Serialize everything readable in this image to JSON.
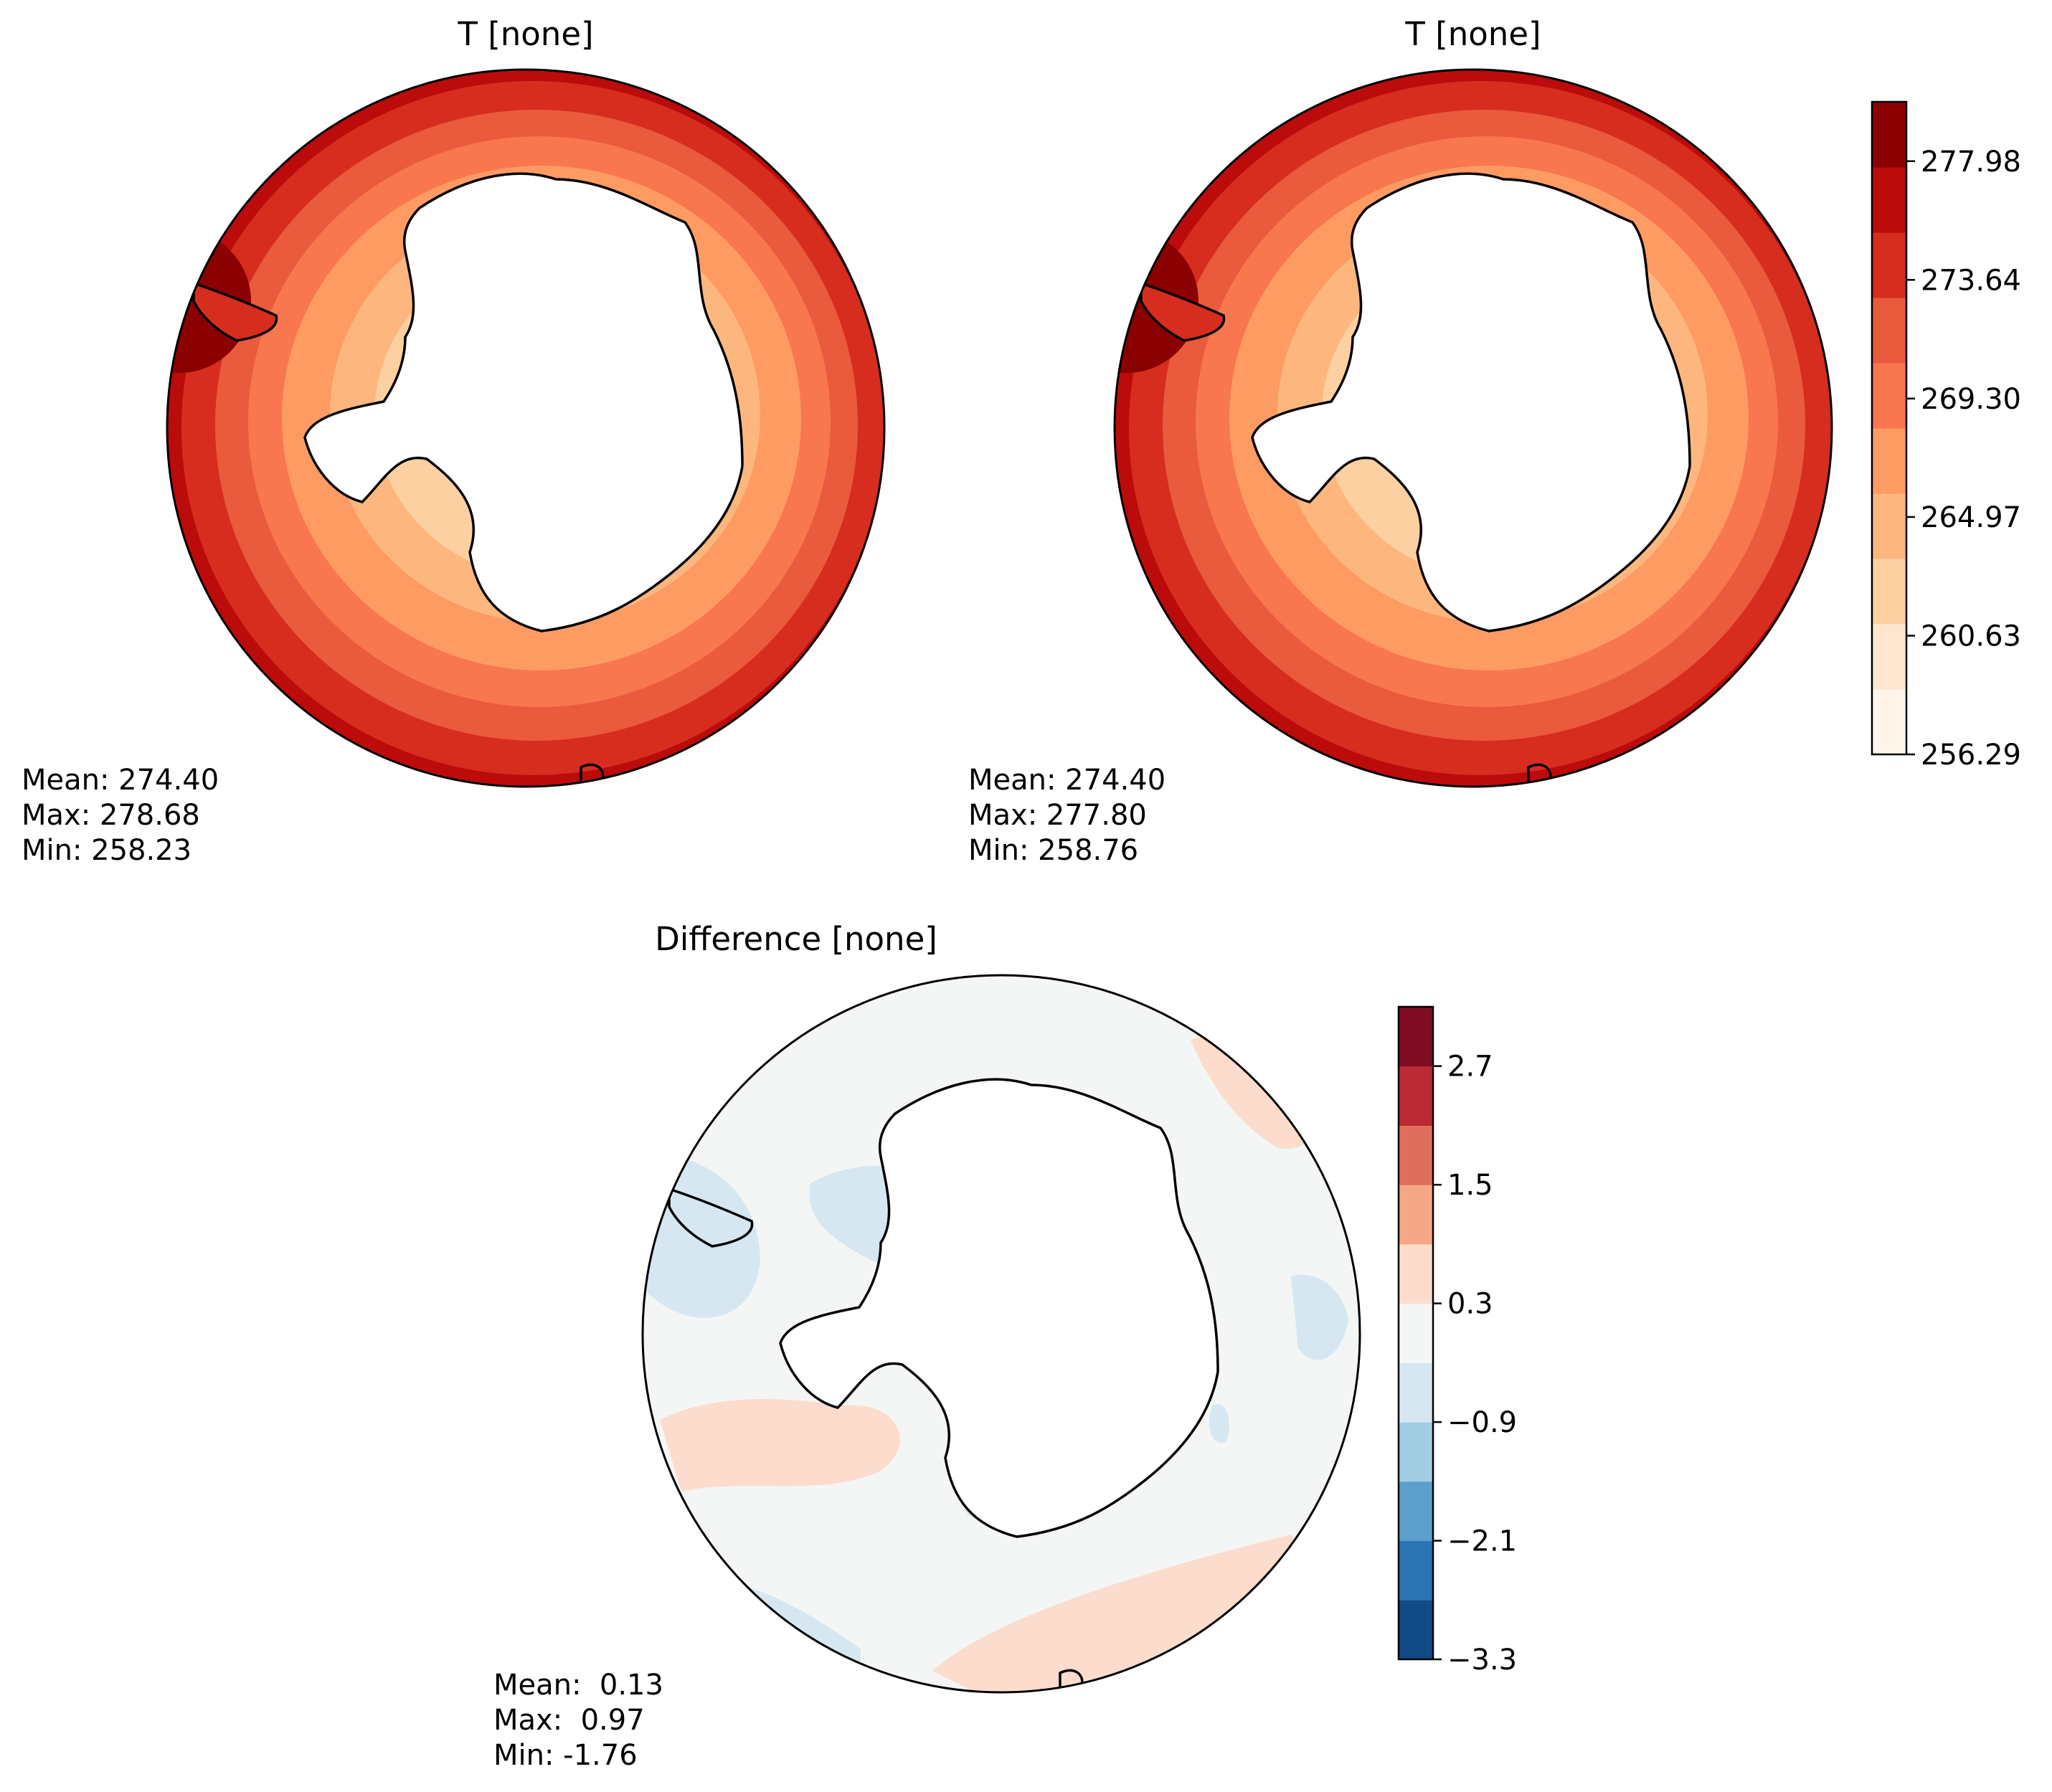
{
  "panels": [
    {
      "title": "T [none]",
      "stats": {
        "mean": "Mean: 274.40",
        "max": "Max: 278.68",
        "min": "Min: 258.23"
      }
    },
    {
      "title": "T [none]",
      "stats": {
        "mean": "Mean: 274.40",
        "max": "Max: 277.80",
        "min": "Min: 258.76"
      }
    },
    {
      "title": "Difference [none]",
      "stats": {
        "mean": "Mean:  0.13",
        "max": "Max:  0.97",
        "min": "Min: -1.76"
      }
    }
  ],
  "colorbars": {
    "temperature": {
      "tick_labels": [
        "256.29",
        "260.63",
        "264.97",
        "269.30",
        "273.64",
        "277.98"
      ],
      "tick_values": [
        256.29,
        260.63,
        264.97,
        269.3,
        273.64,
        277.98
      ],
      "range": [
        256.29,
        280.15
      ],
      "colors": [
        "#fff5eb",
        "#fee6ce",
        "#fdd0a2",
        "#fdb77e",
        "#fd9b63",
        "#f8774f",
        "#ea5a3c",
        "#d62d1f",
        "#bb0b0b",
        "#8b0000"
      ]
    },
    "difference": {
      "tick_labels": [
        "−3.3",
        "−2.1",
        "−0.9",
        "0.3",
        "1.5",
        "2.7"
      ],
      "tick_values": [
        -3.3,
        -2.1,
        -0.9,
        0.3,
        1.5,
        2.7
      ],
      "range": [
        -3.3,
        3.3
      ],
      "colors": [
        "#134b87",
        "#2b73b3",
        "#5c9fcb",
        "#a1cde2",
        "#d6e7f1",
        "#f4f6f6",
        "#fcdccc",
        "#f5a886",
        "#df6e5c",
        "#bb2a33",
        "#7f0d23"
      ]
    }
  },
  "chart_data": [
    {
      "type": "heatmap",
      "projection": "south-polar-stereographic",
      "title": "T [none]",
      "colorbar": "shared-right",
      "levels": [
        256.29,
        258.46,
        260.63,
        262.8,
        264.97,
        267.14,
        269.3,
        271.47,
        273.64,
        275.81,
        277.98,
        280.15
      ],
      "stats": {
        "mean": 274.4,
        "max": 278.68,
        "min": 258.23
      }
    },
    {
      "type": "heatmap",
      "projection": "south-polar-stereographic",
      "title": "T [none]",
      "colorbar": "shared-right",
      "levels": [
        256.29,
        258.46,
        260.63,
        262.8,
        264.97,
        267.14,
        269.3,
        271.47,
        273.64,
        275.81,
        277.98,
        280.15
      ],
      "stats": {
        "mean": 274.4,
        "max": 277.8,
        "min": 258.76
      }
    },
    {
      "type": "heatmap",
      "projection": "south-polar-stereographic",
      "title": "Difference [none]",
      "levels": [
        -3.3,
        -2.7,
        -2.1,
        -1.5,
        -0.9,
        -0.3,
        0.3,
        0.9,
        1.5,
        2.1,
        2.7,
        3.3
      ],
      "stats": {
        "mean": 0.13,
        "max": 0.97,
        "min": -1.76
      }
    }
  ]
}
